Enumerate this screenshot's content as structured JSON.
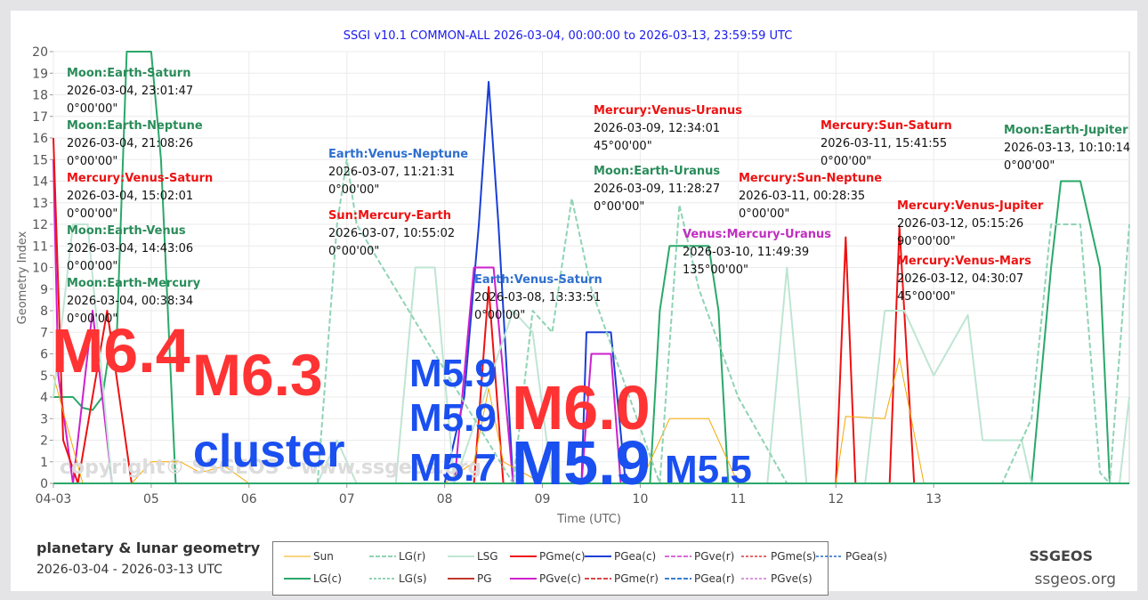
{
  "chart_data": {
    "type": "line",
    "title": "SSGI v10.1 COMMON-ALL 2026-03-04, 00:00:00 to 2026-03-13, 23:59:59 UTC",
    "xlabel": "Time (UTC)",
    "ylabel": "Geometry Index",
    "ylim": [
      0,
      20
    ],
    "yticks": [
      "0",
      "1",
      "2",
      "3",
      "4",
      "5",
      "6",
      "7",
      "8",
      "9",
      "10",
      "11",
      "12",
      "13",
      "14",
      "15",
      "16",
      "17",
      "18",
      "19",
      "20"
    ],
    "xticks": [
      "04-03",
      "05",
      "06",
      "07",
      "08",
      "09",
      "10",
      "11",
      "12",
      "13"
    ],
    "grid": true,
    "legend": [
      {
        "name": "Sun",
        "color": "#f5a800",
        "style": "solid"
      },
      {
        "name": "LG(r)",
        "color": "#8fd3b4",
        "style": "dashdot"
      },
      {
        "name": "LSG",
        "color": "#bfe5d3",
        "style": "solid"
      },
      {
        "name": "PGme(c)",
        "color": "#ee1111",
        "style": "solid"
      },
      {
        "name": "PGea(c)",
        "color": "#1a3fd6",
        "style": "solid"
      },
      {
        "name": "PGve(r)",
        "color": "#d66bd6",
        "style": "dashdot"
      },
      {
        "name": "PGme(s)",
        "color": "#e46a6a",
        "style": "dotted"
      },
      {
        "name": "PGea(s)",
        "color": "#5a8fd6",
        "style": "dotted"
      },
      {
        "name": "LG(c)",
        "color": "#2aa86a",
        "style": "solid"
      },
      {
        "name": "LG(s)",
        "color": "#8fd3b4",
        "style": "dotted"
      },
      {
        "name": "PG",
        "color": "#c0392b",
        "style": "solid"
      },
      {
        "name": "PGve(c)",
        "color": "#cc22cc",
        "style": "solid"
      },
      {
        "name": "PGme(r)",
        "color": "#d9484a",
        "style": "dashdot"
      },
      {
        "name": "PGea(r)",
        "color": "#3a7fd0",
        "style": "dashdot"
      },
      {
        "name": "PGve(s)",
        "color": "#d89ad8",
        "style": "dotted"
      }
    ],
    "series": [
      {
        "name": "LG(c)",
        "x": [
          3.0,
          3.2,
          3.3,
          3.4,
          3.5,
          3.6,
          3.65,
          3.75,
          3.85,
          4.0,
          4.1,
          4.25,
          4.4,
          4.6,
          4.8,
          5.0,
          9.1,
          9.2,
          9.3,
          9.5,
          9.7,
          9.8,
          9.9,
          13.0,
          13.2,
          13.3,
          13.5,
          13.7,
          13.8,
          14.0
        ],
        "y": [
          4,
          4,
          3.5,
          3.4,
          4,
          7,
          7,
          20,
          20,
          20,
          15,
          0,
          0,
          0,
          0,
          0,
          0,
          8,
          11,
          11,
          11,
          8,
          0,
          0,
          10,
          14,
          14,
          10,
          0,
          0
        ]
      },
      {
        "name": "PGea(c)",
        "x": [
          7.0,
          7.2,
          7.35,
          7.45,
          7.55,
          7.7,
          8.0,
          8.4,
          8.45,
          8.55,
          8.7,
          8.85,
          9.0
        ],
        "y": [
          0,
          4,
          12,
          18.6,
          12,
          0,
          0,
          0,
          7,
          7,
          7,
          0,
          0
        ]
      },
      {
        "name": "PGve(c)",
        "x": [
          3.0,
          3.05,
          3.2,
          3.4,
          3.6,
          3.75,
          4.0,
          7.1,
          7.3,
          7.5,
          7.7,
          8.4,
          8.5,
          8.7,
          8.8
        ],
        "y": [
          15,
          5,
          0,
          8,
          0,
          0,
          0,
          0,
          10,
          10,
          0,
          0,
          6,
          6,
          0
        ]
      },
      {
        "name": "PGme(c)",
        "x": [
          3.0,
          3.1,
          3.25,
          3.55,
          3.8,
          7.3,
          7.45,
          7.6,
          11.0,
          11.1,
          11.2,
          11.55,
          11.65,
          11.8
        ],
        "y": [
          16,
          2,
          0,
          8,
          0,
          0,
          9.1,
          0,
          0,
          11.4,
          0,
          0,
          11.9,
          0
        ]
      },
      {
        "name": "Sun",
        "x": [
          3.0,
          3.3,
          3.8,
          4.0,
          4.3,
          4.5,
          4.75,
          5.0,
          7.0,
          7.3,
          7.45,
          7.6,
          8.0,
          9.0,
          9.3,
          9.7,
          10.0,
          11.0,
          11.1,
          11.5,
          11.65,
          11.9,
          12.0,
          14.0
        ],
        "y": [
          5,
          0,
          0,
          1,
          1,
          0.5,
          0.8,
          0,
          0,
          1,
          4.4,
          1,
          0,
          0,
          3,
          3,
          0,
          0,
          3.1,
          3,
          5.8,
          0,
          0,
          0
        ]
      },
      {
        "name": "LSG",
        "x": [
          3.0,
          3.2,
          3.35,
          3.6,
          5.5,
          5.7,
          5.9,
          6.1,
          6.5,
          6.7,
          6.9,
          7.1,
          7.7,
          7.9,
          8.1,
          10.3,
          10.5,
          10.7,
          11.3,
          11.5,
          11.7,
          12.0,
          12.35,
          12.5,
          12.9,
          13.0,
          13.9,
          14.0
        ],
        "y": [
          4,
          12,
          12,
          0,
          0,
          0,
          2,
          0,
          0,
          10,
          10,
          0,
          8,
          7,
          0,
          0,
          10,
          0,
          0,
          8,
          8,
          5,
          7.8,
          2,
          2,
          0,
          0,
          4
        ]
      },
      {
        "name": "LG(r)",
        "x": [
          5.7,
          5.9,
          6.0,
          6.1,
          7.7,
          7.9,
          8.1,
          8.3,
          8.5,
          9.2,
          9.4,
          9.6,
          10.0,
          10.5,
          12.7,
          13.0,
          13.2,
          13.5,
          13.7,
          13.8,
          14.0
        ],
        "y": [
          0,
          12,
          15,
          12,
          0,
          8,
          7,
          13.2,
          9,
          0,
          12.9,
          9,
          4,
          0,
          0,
          3,
          12,
          12,
          0.5,
          0,
          12
        ]
      }
    ],
    "annotations": [
      {
        "label": "Moon:Earth-Saturn",
        "date": "2026-03-04, 23:01:47",
        "angle": "0°00'00\"",
        "color": "#2a8c5a"
      },
      {
        "label": "Moon:Earth-Neptune",
        "date": "2026-03-04, 21:08:26",
        "angle": "0°00'00\"",
        "color": "#2a8c5a"
      },
      {
        "label": "Mercury:Venus-Saturn",
        "date": "2026-03-04, 15:02:01",
        "angle": "0°00'00\"",
        "color": "#ee1111"
      },
      {
        "label": "Moon:Earth-Venus",
        "date": "2026-03-04, 14:43:06",
        "angle": "0°00'00\"",
        "color": "#2a8c5a"
      },
      {
        "label": "Moon:Earth-Mercury",
        "date": "2026-03-04, 00:38:34",
        "angle": "0°00'00\"",
        "color": "#2a8c5a"
      },
      {
        "label": "Earth:Venus-Neptune",
        "date": "2026-03-07, 11:21:31",
        "angle": "0°00'00\"",
        "color": "#2f6fd0"
      },
      {
        "label": "Sun:Mercury-Earth",
        "date": "2026-03-07, 10:55:02",
        "angle": "0°00'00\"",
        "color": "#ee1111"
      },
      {
        "label": "Earth:Venus-Saturn",
        "date": "2026-03-08, 13:33:51",
        "angle": "0°00'00\"",
        "color": "#2f6fd0"
      },
      {
        "label": "Mercury:Venus-Uranus",
        "date": "2026-03-09, 12:34:01",
        "angle": "45°00'00\"",
        "color": "#ee1111"
      },
      {
        "label": "Moon:Earth-Uranus",
        "date": "2026-03-09, 11:28:27",
        "angle": "0°00'00\"",
        "color": "#2a8c5a"
      },
      {
        "label": "Venus:Mercury-Uranus",
        "date": "2026-03-10, 11:49:39",
        "angle": "135°00'00\"",
        "color": "#c02fc0"
      },
      {
        "label": "Mercury:Sun-Neptune",
        "date": "2026-03-11, 00:28:35",
        "angle": "0°00'00\"",
        "color": "#ee1111"
      },
      {
        "label": "Mercury:Sun-Saturn",
        "date": "2026-03-11, 15:41:55",
        "angle": "0°00'00\"",
        "color": "#ee1111"
      },
      {
        "label": "Mercury:Venus-Jupiter",
        "date": "2026-03-12, 05:15:26",
        "angle": "90°00'00\"",
        "color": "#ee1111"
      },
      {
        "label": "Mercury:Venus-Mars",
        "date": "2026-03-12, 04:30:07",
        "angle": "45°00'00\"",
        "color": "#ee1111"
      },
      {
        "label": "Moon:Earth-Jupiter",
        "date": "2026-03-13, 10:10:14",
        "angle": "0°00'00\"",
        "color": "#2a8c5a"
      }
    ],
    "overlays": [
      {
        "text": "M6.4",
        "color": "#ff3333"
      },
      {
        "text": "M6.3",
        "color": "#ff3333"
      },
      {
        "text": "cluster",
        "color": "#1a4ff0"
      },
      {
        "text": "M5.9",
        "color": "#1a4ff0"
      },
      {
        "text": "M5.9",
        "color": "#1a4ff0"
      },
      {
        "text": "M5.7",
        "color": "#1a4ff0"
      },
      {
        "text": "M6.0",
        "color": "#ff3333"
      },
      {
        "text": "M5.9",
        "color": "#1a4ff0"
      },
      {
        "text": "M5.5",
        "color": "#1a4ff0"
      }
    ],
    "watermark": "copyright© SSGEOS - www.ssgeos.org"
  },
  "footer": {
    "title": "planetary & lunar geometry",
    "range": "2026-03-04 - 2026-03-13 UTC",
    "brand": "SSGEOS",
    "url": "ssgeos.org"
  }
}
